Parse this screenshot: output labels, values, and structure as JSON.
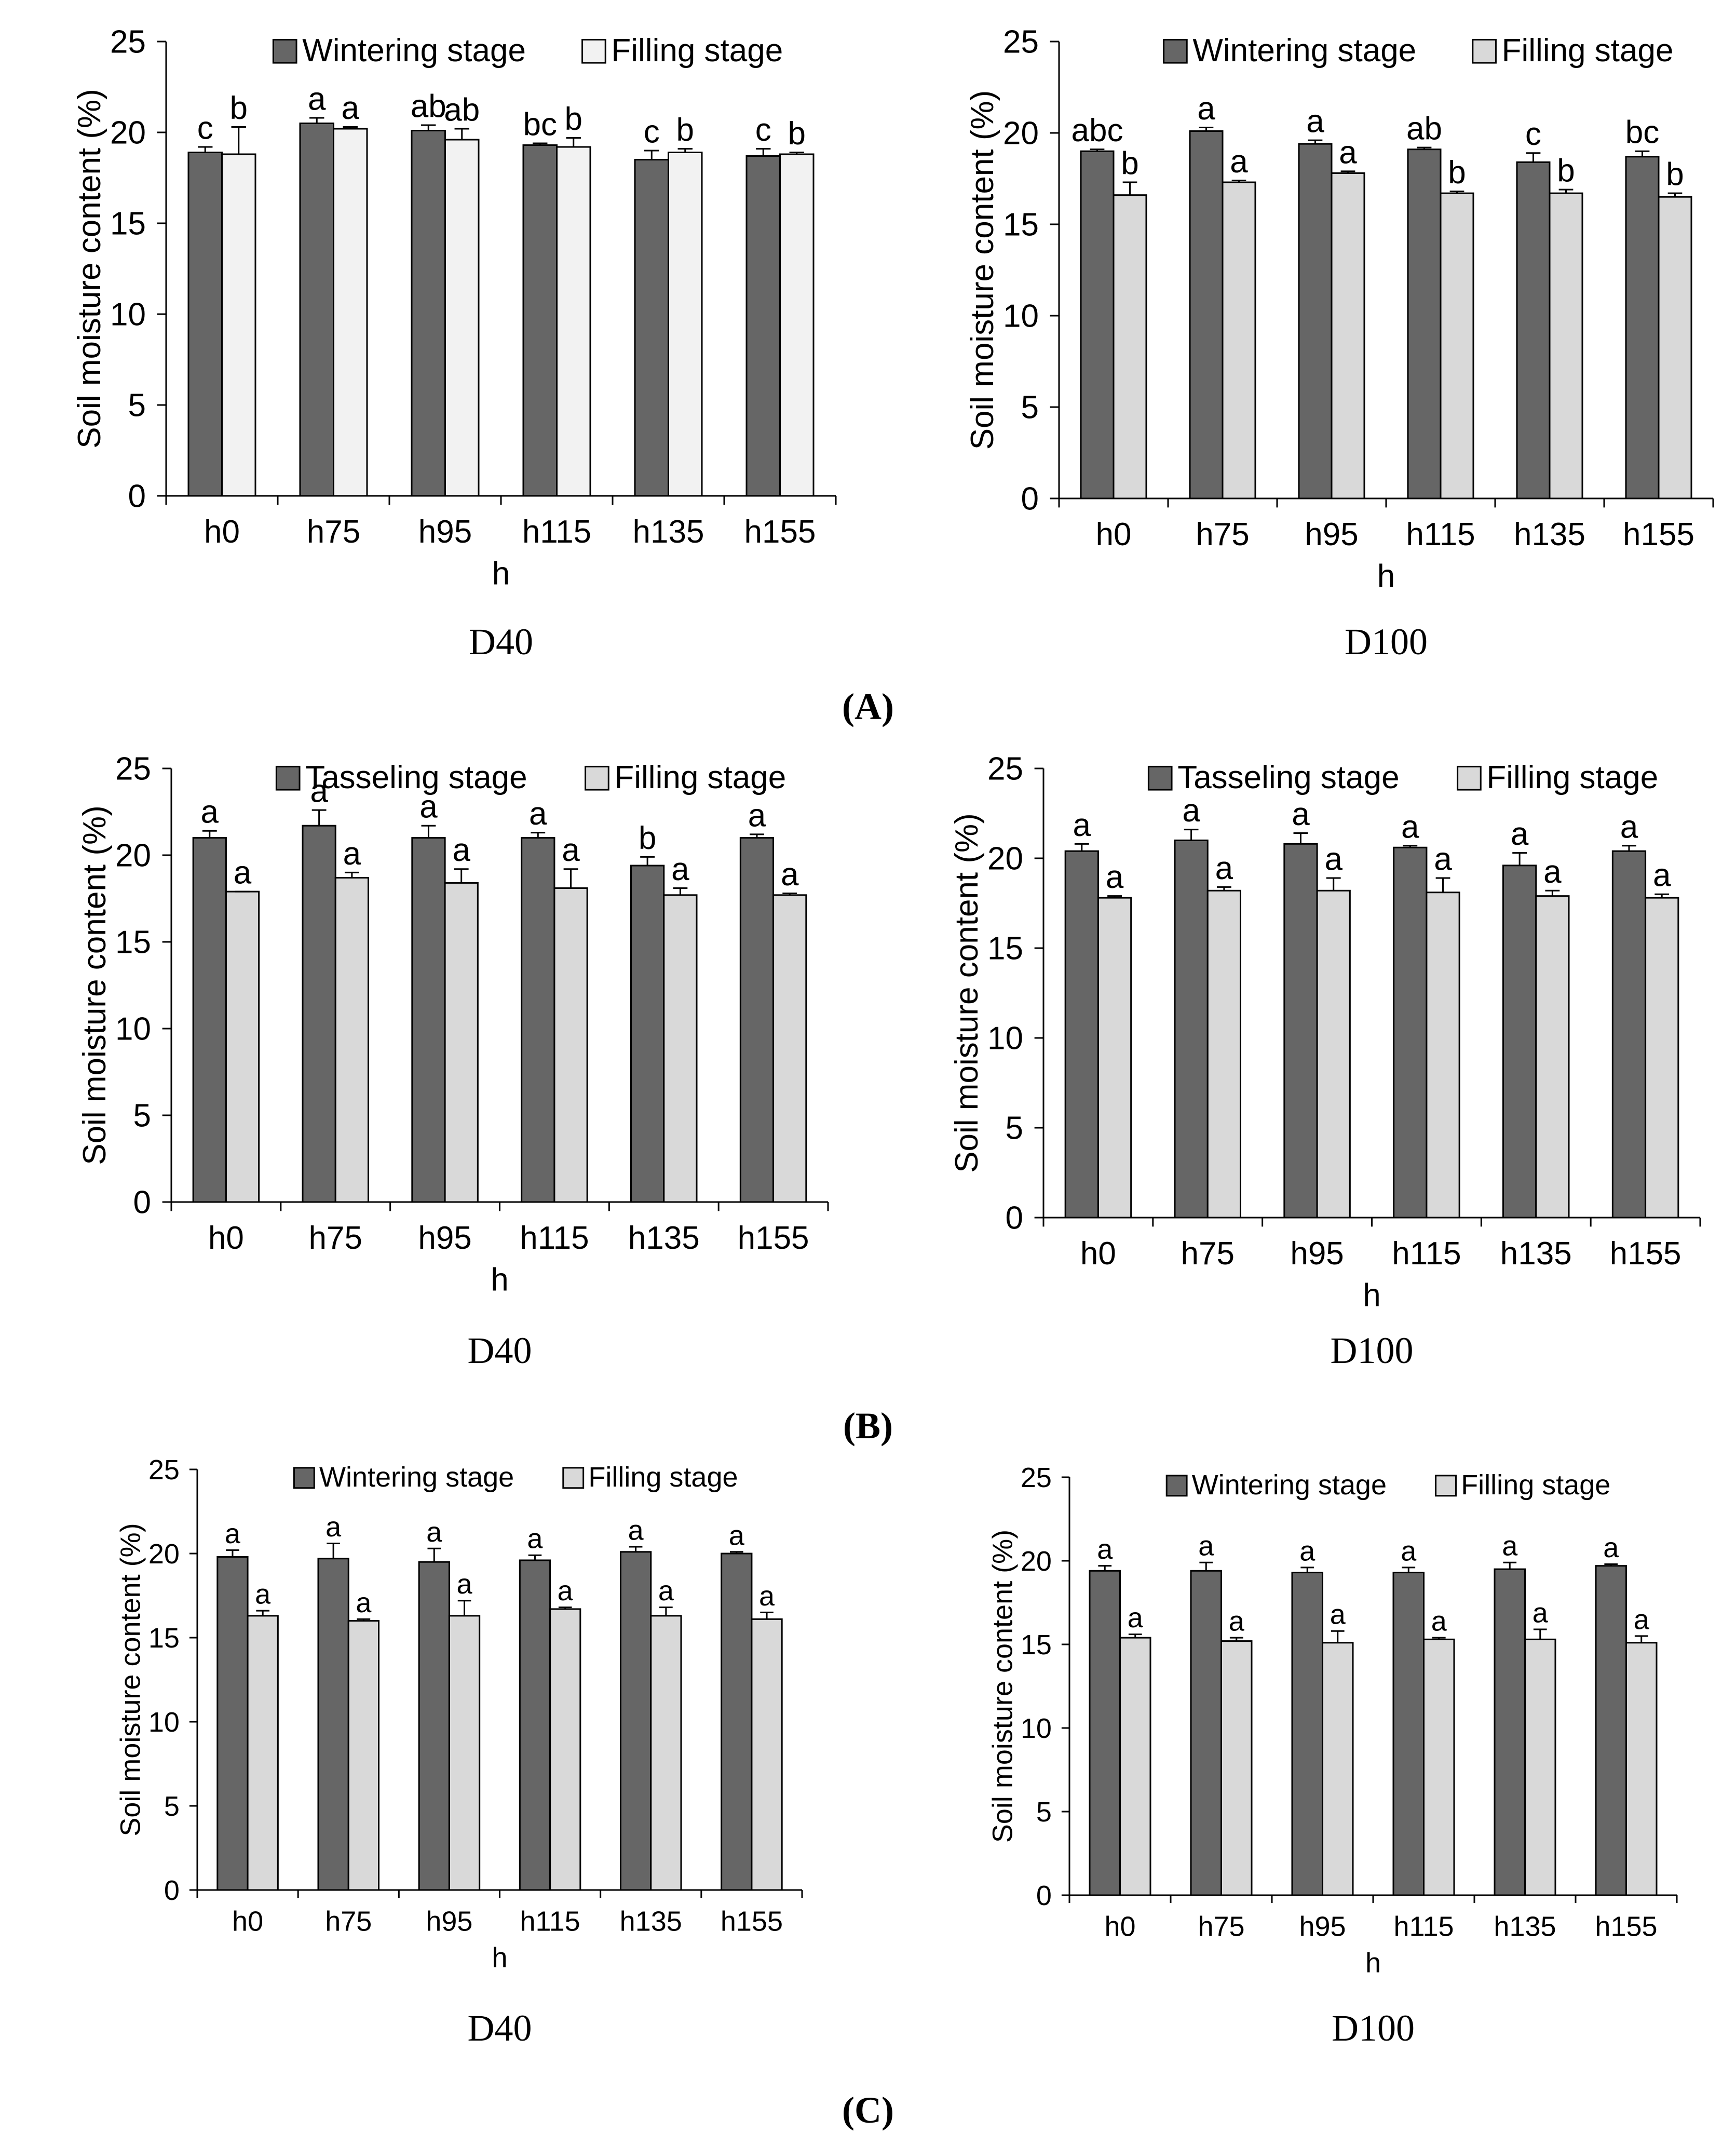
{
  "colors": {
    "dark": "#666666",
    "light_a": "#f2f2f2",
    "light": "#d9d9d9",
    "stroke": "#000000"
  },
  "panel_labels": [
    "(A)",
    "(B)",
    "(C)"
  ],
  "chart_data": [
    {
      "type": "bar",
      "panel": "A",
      "caption": "D40",
      "xlabel": "h",
      "ylabel": "Soil moisture content (%)",
      "ylim": [
        0,
        25
      ],
      "yticks": [
        0,
        5,
        10,
        15,
        20,
        25
      ],
      "categories": [
        "h0",
        "h75",
        "h95",
        "h115",
        "h135",
        "h155"
      ],
      "legend_position": "top",
      "series": [
        {
          "name": "Wintering stage",
          "color": "#666666",
          "values": [
            18.9,
            20.5,
            20.1,
            19.3,
            18.5,
            18.7
          ],
          "errors": [
            0.3,
            0.3,
            0.3,
            0.1,
            0.5,
            0.4
          ],
          "letters": [
            "c",
            "a",
            "ab",
            "bc",
            "c",
            "c"
          ]
        },
        {
          "name": "Filling stage",
          "color": "#f2f2f2",
          "values": [
            18.8,
            20.2,
            19.6,
            19.2,
            18.9,
            18.8
          ],
          "errors": [
            1.5,
            0.1,
            0.6,
            0.5,
            0.2,
            0.1
          ],
          "letters": [
            "b",
            "a",
            "ab",
            "b",
            "b",
            "b"
          ]
        }
      ]
    },
    {
      "type": "bar",
      "panel": "A",
      "caption": "D100",
      "xlabel": "h",
      "ylabel": "Soil moisture content (%)",
      "ylim": [
        0,
        25
      ],
      "yticks": [
        0,
        5,
        10,
        15,
        20,
        25
      ],
      "categories": [
        "h0",
        "h75",
        "h95",
        "h115",
        "h135",
        "h155"
      ],
      "legend_position": "top",
      "series": [
        {
          "name": "Wintering stage",
          "color": "#666666",
          "values": [
            19.0,
            20.1,
            19.4,
            19.1,
            18.4,
            18.7
          ],
          "errors": [
            0.1,
            0.2,
            0.2,
            0.1,
            0.5,
            0.3
          ],
          "letters": [
            "abc",
            "a",
            "a",
            "ab",
            "c",
            "bc"
          ]
        },
        {
          "name": "Filling stage",
          "color": "#d9d9d9",
          "values": [
            16.6,
            17.3,
            17.8,
            16.7,
            16.7,
            16.5
          ],
          "errors": [
            0.7,
            0.1,
            0.1,
            0.1,
            0.2,
            0.2
          ],
          "letters": [
            "b",
            "a",
            "a",
            "b",
            "b",
            "b"
          ]
        }
      ]
    },
    {
      "type": "bar",
      "panel": "B",
      "caption": "D40",
      "xlabel": "h",
      "ylabel": "Soil moisture content (%)",
      "ylim": [
        0,
        25
      ],
      "yticks": [
        0,
        5,
        10,
        15,
        20,
        25
      ],
      "categories": [
        "h0",
        "h75",
        "h95",
        "h115",
        "h135",
        "h155"
      ],
      "legend_position": "top",
      "series": [
        {
          "name": "Tasseling stage",
          "color": "#666666",
          "values": [
            21.0,
            21.7,
            21.0,
            21.0,
            19.4,
            21.0
          ],
          "errors": [
            0.4,
            0.9,
            0.7,
            0.3,
            0.5,
            0.2
          ],
          "letters": [
            "a",
            "a",
            "a",
            "a",
            "b",
            "a"
          ]
        },
        {
          "name": "Filling stage",
          "color": "#d9d9d9",
          "values": [
            17.9,
            18.7,
            18.4,
            18.1,
            17.7,
            17.7
          ],
          "errors": [
            0.0,
            0.3,
            0.8,
            1.1,
            0.4,
            0.1
          ],
          "letters": [
            "a",
            "a",
            "a",
            "a",
            "a",
            "a"
          ]
        }
      ]
    },
    {
      "type": "bar",
      "panel": "B",
      "caption": "D100",
      "xlabel": "h",
      "ylabel": "Soil moisture content (%)",
      "ylim": [
        0,
        25
      ],
      "yticks": [
        0,
        5,
        10,
        15,
        20,
        25
      ],
      "categories": [
        "h0",
        "h75",
        "h95",
        "h115",
        "h135",
        "h155"
      ],
      "legend_position": "top",
      "series": [
        {
          "name": "Tasseling stage",
          "color": "#666666",
          "values": [
            20.4,
            21.0,
            20.8,
            20.6,
            19.6,
            20.4
          ],
          "errors": [
            0.4,
            0.6,
            0.6,
            0.1,
            0.7,
            0.3
          ],
          "letters": [
            "a",
            "a",
            "a",
            "a",
            "a",
            "a"
          ]
        },
        {
          "name": "Filling stage",
          "color": "#d9d9d9",
          "values": [
            17.8,
            18.2,
            18.2,
            18.1,
            17.9,
            17.8
          ],
          "errors": [
            0.1,
            0.2,
            0.7,
            0.8,
            0.3,
            0.2
          ],
          "letters": [
            "a",
            "a",
            "a",
            "a",
            "a",
            "a"
          ]
        }
      ]
    },
    {
      "type": "bar",
      "panel": "C",
      "caption": "D40",
      "xlabel": "h",
      "ylabel": "Soil moisture content (%)",
      "ylim": [
        0,
        25
      ],
      "yticks": [
        0,
        5,
        10,
        15,
        20,
        25
      ],
      "categories": [
        "h0",
        "h75",
        "h95",
        "h115",
        "h135",
        "h155"
      ],
      "legend_position": "top",
      "series": [
        {
          "name": "Wintering stage",
          "color": "#666666",
          "values": [
            19.8,
            19.7,
            19.5,
            19.6,
            20.1,
            20.0
          ],
          "errors": [
            0.4,
            0.9,
            0.8,
            0.3,
            0.3,
            0.1
          ],
          "letters": [
            "a",
            "a",
            "a",
            "a",
            "a",
            "a"
          ]
        },
        {
          "name": "Filling stage",
          "color": "#d9d9d9",
          "values": [
            16.3,
            16.0,
            16.3,
            16.7,
            16.3,
            16.1
          ],
          "errors": [
            0.3,
            0.1,
            0.9,
            0.1,
            0.5,
            0.4
          ],
          "letters": [
            "a",
            "a",
            "a",
            "a",
            "a",
            "a"
          ]
        }
      ]
    },
    {
      "type": "bar",
      "panel": "C",
      "caption": "D100",
      "xlabel": "h",
      "ylabel": "Soil moisture content (%)",
      "ylim": [
        0,
        25
      ],
      "yticks": [
        0,
        5,
        10,
        15,
        20,
        25
      ],
      "categories": [
        "h0",
        "h75",
        "h95",
        "h115",
        "h135",
        "h155"
      ],
      "legend_position": "top",
      "series": [
        {
          "name": "Wintering stage",
          "color": "#666666",
          "values": [
            19.4,
            19.4,
            19.3,
            19.3,
            19.5,
            19.7
          ],
          "errors": [
            0.3,
            0.5,
            0.3,
            0.3,
            0.4,
            0.1
          ],
          "letters": [
            "a",
            "a",
            "a",
            "a",
            "a",
            "a"
          ]
        },
        {
          "name": "Filling stage",
          "color": "#d9d9d9",
          "values": [
            15.4,
            15.2,
            15.1,
            15.3,
            15.3,
            15.1
          ],
          "errors": [
            0.2,
            0.2,
            0.7,
            0.1,
            0.6,
            0.4
          ],
          "letters": [
            "a",
            "a",
            "a",
            "a",
            "a",
            "a"
          ]
        }
      ]
    }
  ]
}
